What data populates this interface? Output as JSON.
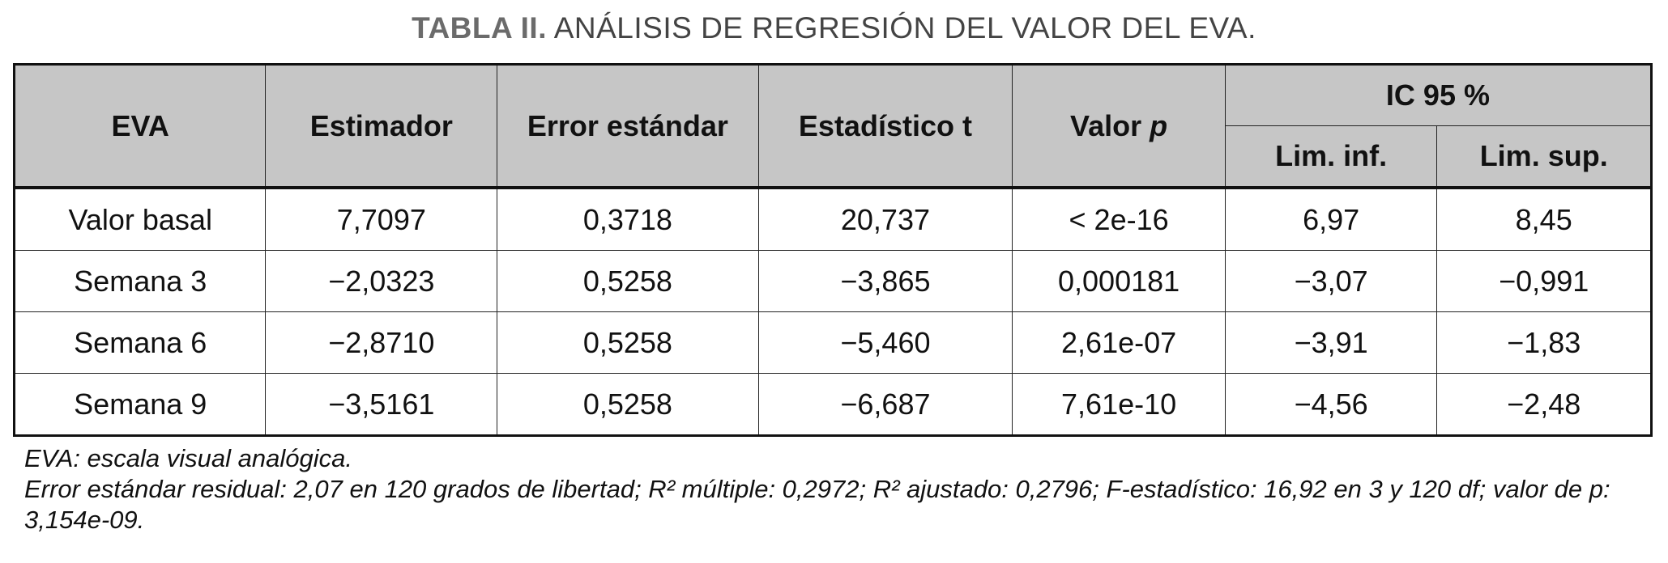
{
  "title": {
    "lead": "TABLA II.",
    "text": "ANÁLISIS DE REGRESIÓN DEL VALOR DEL EVA."
  },
  "table": {
    "headers": {
      "eva": "EVA",
      "estimador": "Estimador",
      "error": "Error estándar",
      "estadistico": "Estadístico t",
      "valor": "Valor",
      "valor_italic": "p",
      "ic": "IC 95 %",
      "lim_inf": "Lim. inf.",
      "lim_sup": "Lim. sup."
    },
    "rows": [
      [
        "Valor basal",
        "7,7097",
        "0,3718",
        "20,737",
        "< 2e-16",
        "6,97",
        "8,45"
      ],
      [
        "Semana 3",
        "−2,0323",
        "0,5258",
        "−3,865",
        "0,000181",
        "−3,07",
        "−0,991"
      ],
      [
        "Semana 6",
        "−2,8710",
        "0,5258",
        "−5,460",
        "2,61e-07",
        "−3,91",
        "−1,83"
      ],
      [
        "Semana 9",
        "−3,5161",
        "0,5258",
        "−6,687",
        "7,61e-10",
        "−4,56",
        "−2,48"
      ]
    ]
  },
  "notes": {
    "line1": "EVA: escala visual analógica.",
    "line2": "Error estándar residual: 2,07 en 120 grados de libertad; R² múltiple: 0,2972; R² ajustado: 0,2796; F-estadístico: 16,92 en 3 y 120 df; valor de p: 3,154e-09."
  }
}
